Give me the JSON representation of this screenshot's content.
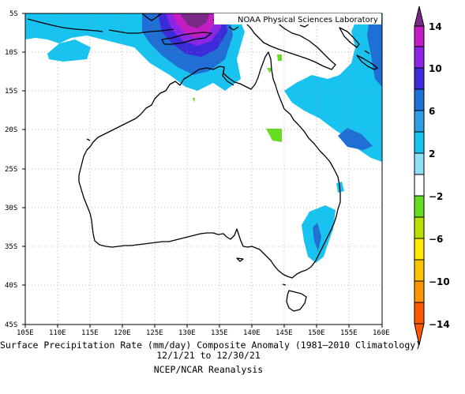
{
  "credit": "NOAA Physical Sciences Laboratory",
  "title": "Surface Precipitation Rate (mm/day) Composite Anomaly (1981–2010 Climatology)",
  "date_range": "12/1/21  to 12/30/21",
  "source": "NCEP/NCAR Reanalysis",
  "longitude_ticks": [
    "105E",
    "110E",
    "115E",
    "120E",
    "125E",
    "130E",
    "135E",
    "140E",
    "145E",
    "150E",
    "155E",
    "160E"
  ],
  "latitude_ticks": [
    "5S",
    "10S",
    "15S",
    "20S",
    "25S",
    "30S",
    "35S",
    "40S",
    "45S"
  ],
  "colorbar": {
    "labels": [
      "14",
      "10",
      "6",
      "2",
      "−2",
      "−6",
      "−10",
      "−14"
    ],
    "colors": {
      "purple": "#7a2a86",
      "magenta": "#c21ec4",
      "violet": "#8c26e6",
      "blue_violet": "#3b2bd9",
      "dark_blue": "#1f6fd4",
      "medium_blue": "#2e9ee6",
      "cyan": "#19c3f0",
      "light_cyan": "#8fdff7",
      "white": "#ffffff",
      "green": "#66dd22",
      "yellow_green": "#b8e000",
      "yellow": "#ffea00",
      "gold": "#ffc400",
      "orange": "#ff9500",
      "red_orange": "#ff5a00"
    }
  }
}
